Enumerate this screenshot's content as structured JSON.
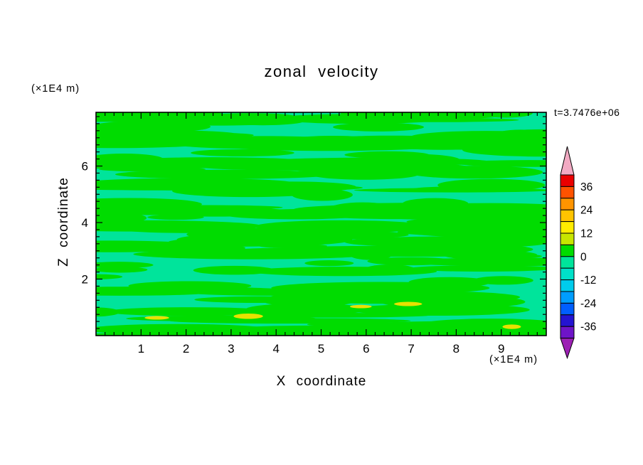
{
  "chart_data": {
    "type": "heatmap",
    "title": "zonal velocity",
    "timestamp": "t=3.7476e+06",
    "xlabel": "X coordinate",
    "ylabel": "Z coordinate",
    "x_unit": "(×1E4 m)",
    "y_unit": "(×1E4 m)",
    "x_range": [
      0,
      10
    ],
    "y_range": [
      0,
      7.9
    ],
    "x_ticks": [
      1,
      2,
      3,
      4,
      5,
      6,
      7,
      8,
      9
    ],
    "y_ticks": [
      2,
      4,
      6
    ],
    "x_minor_step": 0.2,
    "y_minor_step": 0.25,
    "grid": false,
    "legend_position": "right-colorbar",
    "colorbar": {
      "tick_labels": [
        "36",
        "24",
        "12",
        "0",
        "-12",
        "-24",
        "-36"
      ],
      "band_step": 6,
      "bands_top_to_bottom": [
        {
          "range": [
            36,
            42
          ],
          "color": "#ea0000"
        },
        {
          "range": [
            30,
            36
          ],
          "color": "#ff5200"
        },
        {
          "range": [
            24,
            30
          ],
          "color": "#ff9400"
        },
        {
          "range": [
            18,
            24
          ],
          "color": "#ffc400"
        },
        {
          "range": [
            12,
            18
          ],
          "color": "#ffec00"
        },
        {
          "range": [
            6,
            12
          ],
          "color": "#c8e600"
        },
        {
          "range": [
            0,
            6
          ],
          "color": "#00dc00"
        },
        {
          "range": [
            -6,
            0
          ],
          "color": "#00e49b"
        },
        {
          "range": [
            -12,
            -6
          ],
          "color": "#00e1c8"
        },
        {
          "range": [
            -18,
            -12
          ],
          "color": "#00ccec"
        },
        {
          "range": [
            -24,
            -18
          ],
          "color": "#009dff"
        },
        {
          "range": [
            -30,
            -24
          ],
          "color": "#005eff"
        },
        {
          "range": [
            -36,
            -30
          ],
          "color": "#2414d2"
        },
        {
          "range": [
            -42,
            -36
          ],
          "color": "#6e14c8"
        }
      ],
      "over_color": "#f2aac3",
      "under_color": "#9c20b4"
    },
    "field": {
      "description": "Zonal velocity contour field; values almost everywhere between -6 and +6 (green and spring-green bands) arranged in horizontally elongated streaks, with a few small 6-12 patches near the bottom boundary.",
      "base_color": "#00e49b",
      "base_value_range": [
        -6,
        0
      ],
      "streak_color": "#00dc00",
      "streak_value_range": [
        0,
        6
      ],
      "accent_color": "#e8e100",
      "accent_value_range": [
        6,
        12
      ],
      "streak_count": 150,
      "accent_count": 5,
      "seed": 42
    }
  }
}
